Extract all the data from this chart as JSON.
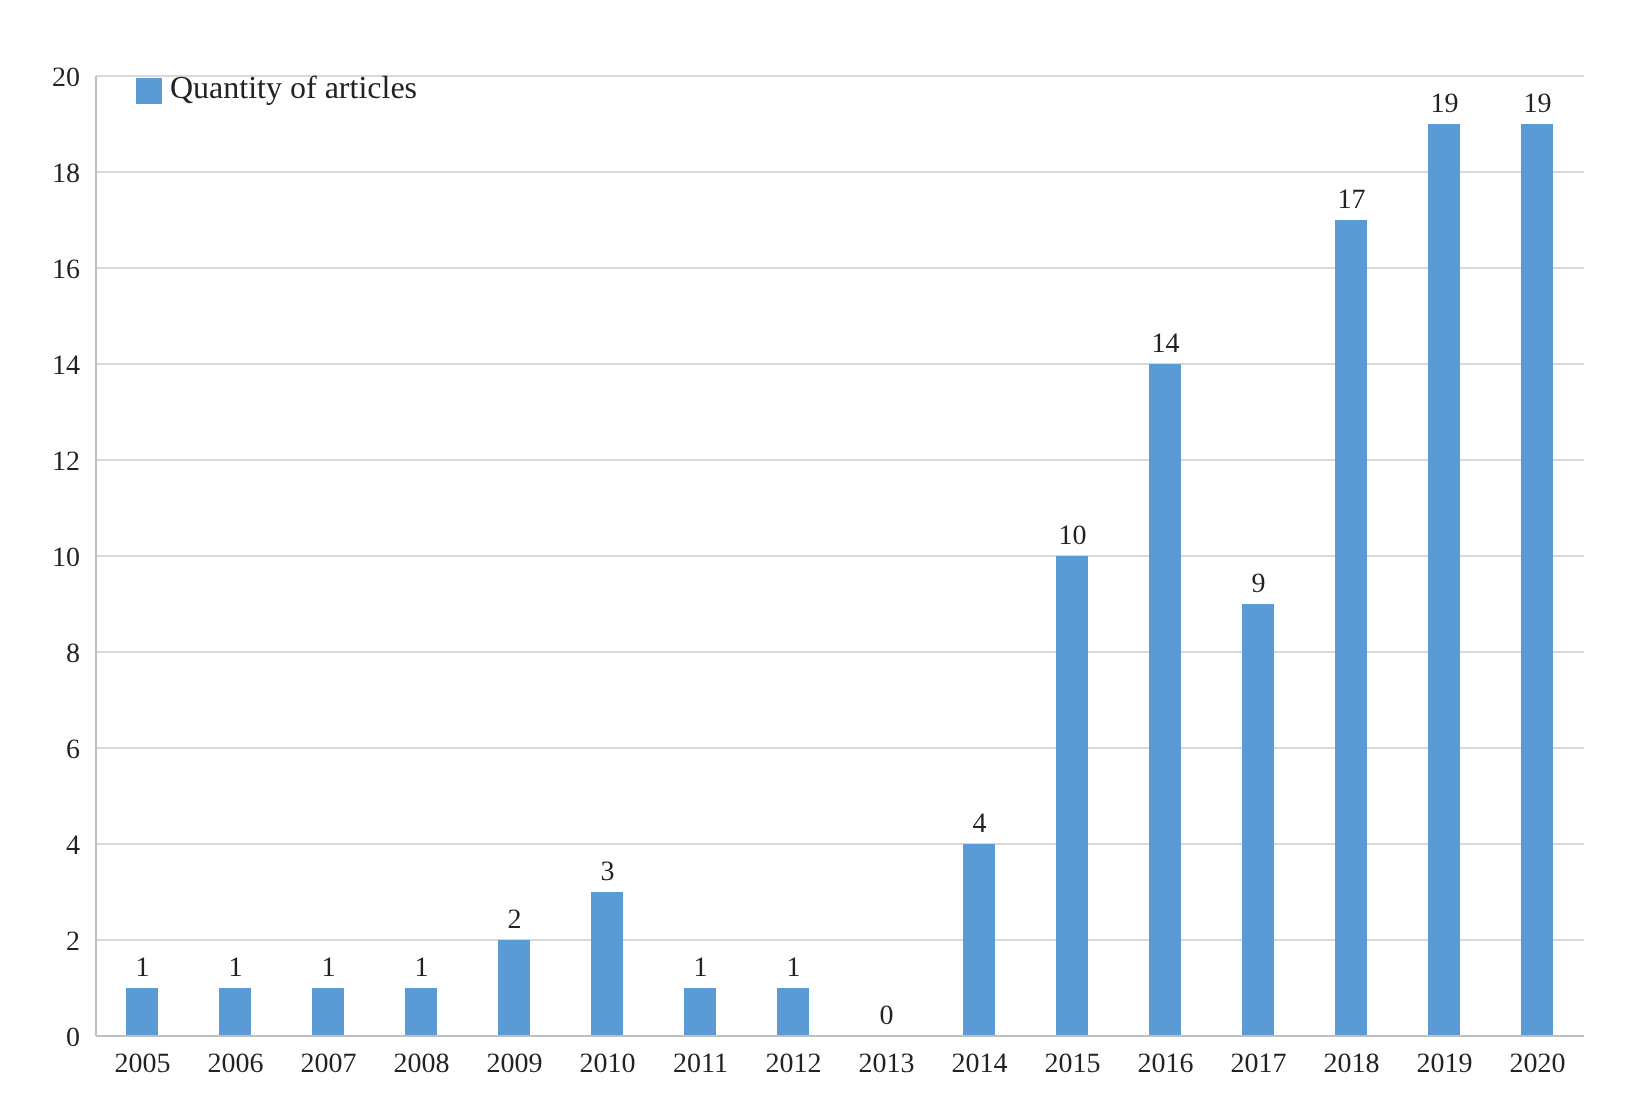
{
  "chart_data": {
    "type": "bar",
    "categories": [
      "2005",
      "2006",
      "2007",
      "2008",
      "2009",
      "2010",
      "2011",
      "2012",
      "2013",
      "2014",
      "2015",
      "2016",
      "2017",
      "2018",
      "2019",
      "2020"
    ],
    "series": [
      {
        "name": "Quantity of articles",
        "color": "#5b9bd5",
        "values": [
          1,
          1,
          1,
          1,
          2,
          3,
          1,
          1,
          0,
          4,
          10,
          14,
          9,
          17,
          19,
          19
        ]
      }
    ],
    "ylim": [
      0,
      20
    ],
    "yticks": [
      0,
      2,
      4,
      6,
      8,
      10,
      12,
      14,
      16,
      18,
      20
    ],
    "grid": "y",
    "legend": "top left",
    "data_labels": true
  }
}
